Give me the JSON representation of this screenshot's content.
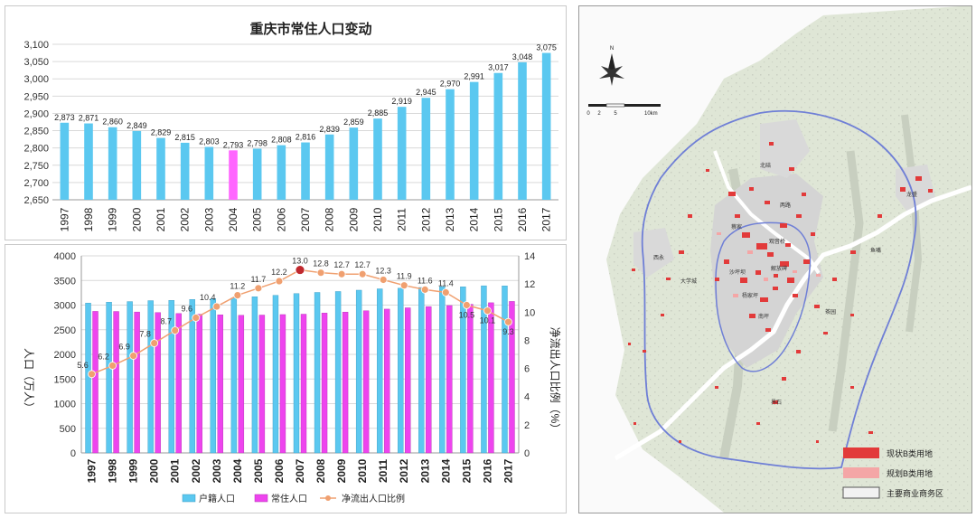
{
  "chart_data": [
    {
      "type": "bar",
      "title": "重庆市常住人口变动",
      "categories": [
        "1997",
        "1998",
        "1999",
        "2000",
        "2001",
        "2002",
        "2003",
        "2004",
        "2005",
        "2006",
        "2007",
        "2008",
        "2009",
        "2010",
        "2011",
        "2012",
        "2013",
        "2014",
        "2015",
        "2016",
        "2017"
      ],
      "values": [
        2873,
        2871,
        2860,
        2849,
        2829,
        2815,
        2803,
        2793,
        2798,
        2808,
        2816,
        2839,
        2859,
        2885,
        2919,
        2945,
        2970,
        2991,
        3017,
        3048,
        3075
      ],
      "value_labels": [
        "2,873",
        "2,871",
        "2,860",
        "2,849",
        "2,829",
        "2,815",
        "2,803",
        "2,793",
        "2,798",
        "2,808",
        "2,816",
        "2,839",
        "2,859",
        "2,885",
        "2,919",
        "2,945",
        "2,970",
        "2,991",
        "3,017",
        "3,048",
        "3,075"
      ],
      "highlight_index": 7,
      "ylim": [
        2650,
        3100
      ],
      "yticks": [
        "2,650",
        "2,700",
        "2,750",
        "2,800",
        "2,850",
        "2,900",
        "2,950",
        "3,000",
        "3,050",
        "3,100"
      ],
      "grid": true,
      "colors": {
        "bar": "#5bc8f0",
        "highlight": "#ff66ff"
      }
    },
    {
      "type": "bar",
      "categories": [
        "1997",
        "1998",
        "1999",
        "2000",
        "2001",
        "2002",
        "2003",
        "2004",
        "2005",
        "2006",
        "2007",
        "2008",
        "2009",
        "2010",
        "2011",
        "2012",
        "2013",
        "2014",
        "2015",
        "2016",
        "2017"
      ],
      "series": [
        {
          "name": "户籍人口",
          "type": "bar",
          "axis": "left",
          "color": "#5bc8f0",
          "values": [
            3042,
            3060,
            3072,
            3091,
            3097,
            3114,
            3130,
            3144,
            3169,
            3199,
            3235,
            3257,
            3276,
            3303,
            3330,
            3343,
            3358,
            3375,
            3372,
            3392,
            3390
          ]
        },
        {
          "name": "常住人口",
          "type": "bar",
          "axis": "left",
          "color": "#ee44ee",
          "values": [
            2873,
            2871,
            2860,
            2849,
            2829,
            2815,
            2803,
            2793,
            2798,
            2808,
            2816,
            2839,
            2859,
            2885,
            2919,
            2945,
            2970,
            2991,
            3017,
            3048,
            3075
          ]
        },
        {
          "name": "净流出人口比例",
          "type": "line",
          "axis": "right",
          "color": "#f0a070",
          "values": [
            5.6,
            6.2,
            6.9,
            7.8,
            8.7,
            9.6,
            10.4,
            11.2,
            11.7,
            12.2,
            13.0,
            12.8,
            12.7,
            12.7,
            12.3,
            11.9,
            11.6,
            11.4,
            10.5,
            10.1,
            9.3
          ],
          "labels": [
            "5.6",
            "6.2",
            "6.9",
            "7.8",
            "8.7",
            "9.6",
            "10.4",
            "11.2",
            "11.7",
            "12.2",
            "13.0",
            "12.8",
            "12.7",
            "12.7",
            "12.3",
            "11.9",
            "11.6",
            "11.4",
            "10.5",
            "10.1",
            "9.3"
          ],
          "highlight_index": 10
        }
      ],
      "ylabel": "人口（万人）",
      "y2label": "净流出人口比例（%）",
      "ylim": [
        0,
        4000
      ],
      "y2lim": [
        0,
        14
      ],
      "yticks": [
        "0",
        "500",
        "1000",
        "1500",
        "2000",
        "2500",
        "3000",
        "3500",
        "4000"
      ],
      "y2ticks": [
        "0",
        "2",
        "4",
        "6",
        "8",
        "10",
        "12",
        "14"
      ],
      "legend_position": "bottom",
      "grid": true
    }
  ],
  "map": {
    "north_symbol": "N",
    "scale_labels": [
      "0",
      "2",
      "5",
      "10km"
    ],
    "place_labels": [
      "南坪",
      "解放碑",
      "观音桥",
      "两路",
      "北碚",
      "西永",
      "蔡家",
      "大学城",
      "沙坪坝",
      "杨家坪",
      "茶园",
      "界石",
      "龙盛",
      "鱼嘴"
    ],
    "legend": [
      {
        "label": "现状B类用地",
        "color": "#e23a3a"
      },
      {
        "label": "规划B类用地",
        "color": "#f4a6a6"
      },
      {
        "label": "主要商业商务区",
        "color": "#f2f2f2"
      }
    ],
    "colors": {
      "base": "#dfe6d6",
      "ring": "#6f7fd6",
      "river": "#ffffff",
      "urban": "#cfcfcf"
    }
  }
}
